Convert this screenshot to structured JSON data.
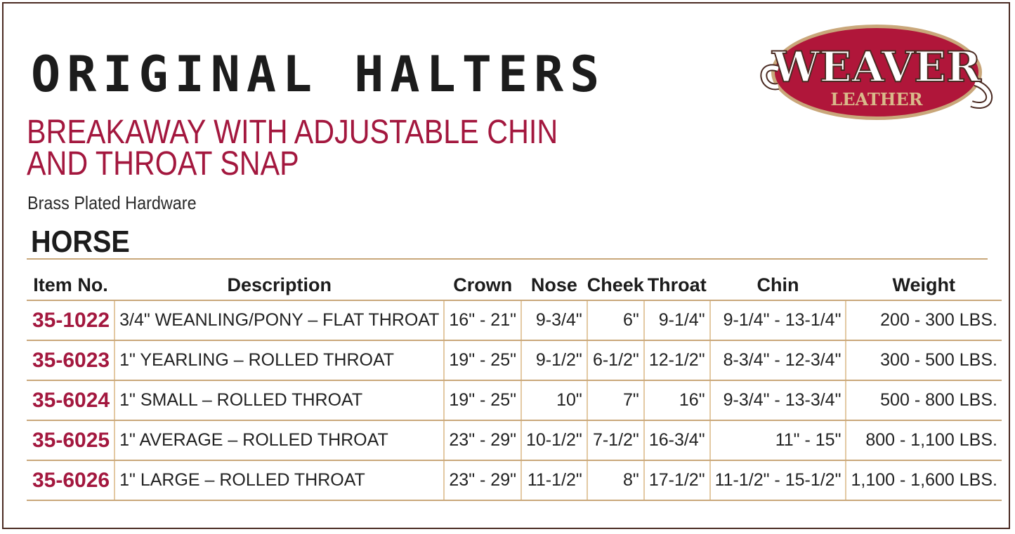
{
  "title": "ORIGINAL HALTERS",
  "subtitle_line1": "BREAKAWAY WITH ADJUSTABLE CHIN",
  "subtitle_line2": "AND THROAT SNAP",
  "hardware": "Brass Plated Hardware",
  "section": "HORSE",
  "logo": {
    "text_main": "WEAVER",
    "text_sub": "LEATHER"
  },
  "colors": {
    "accent": "#a3173e",
    "rule": "#c9a77a",
    "frame": "#4a2a22"
  },
  "table": {
    "headers": [
      "Item No.",
      "Description",
      "Crown",
      "Nose",
      "Cheek",
      "Throat",
      "Chin",
      "Weight"
    ],
    "rows": [
      [
        "35-1022",
        "3/4\" WEANLING/PONY – FLAT THROAT",
        "16\" - 21\"",
        "9-3/4\"",
        "6\"",
        "9-1/4\"",
        "9-1/4\" - 13-1/4\"",
        "200 - 300 LBS."
      ],
      [
        "35-6023",
        "1\" YEARLING – ROLLED THROAT",
        "19\" - 25\"",
        "9-1/2\"",
        "6-1/2\"",
        "12-1/2\"",
        "8-3/4\" - 12-3/4\"",
        "300 - 500 LBS."
      ],
      [
        "35-6024",
        "1\" SMALL – ROLLED THROAT",
        "19\" - 25\"",
        "10\"",
        "7\"",
        "16\"",
        "9-3/4\" - 13-3/4\"",
        "500 - 800 LBS."
      ],
      [
        "35-6025",
        "1\" AVERAGE – ROLLED THROAT",
        "23\" - 29\"",
        "10-1/2\"",
        "7-1/2\"",
        "16-3/4\"",
        "11\" - 15\"",
        "800 - 1,100 LBS."
      ],
      [
        "35-6026",
        "1\" LARGE – ROLLED THROAT",
        "23\" - 29\"",
        "11-1/2\"",
        "8\"",
        "17-1/2\"",
        "11-1/2\" - 15-1/2\"",
        "1,100 - 1,600 LBS."
      ]
    ]
  }
}
